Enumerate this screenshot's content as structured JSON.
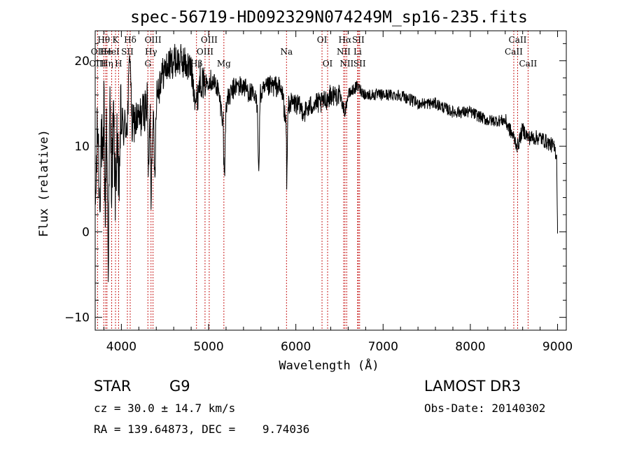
{
  "chart_data": {
    "type": "line",
    "title": "spec-56719-HD092329N074249M_sp16-235.fits",
    "xlabel": "Wavelength (Å)",
    "ylabel": "Flux (relative)",
    "xlim": [
      3700,
      9100
    ],
    "ylim": [
      -11.5,
      23.5
    ],
    "xticks": [
      4000,
      5000,
      6000,
      7000,
      8000,
      9000
    ],
    "yticks": [
      -10,
      0,
      10,
      20
    ],
    "series": [
      {
        "name": "spectrum",
        "anchors": [
          [
            3700,
            2
          ],
          [
            3730,
            13
          ],
          [
            3750,
            3
          ],
          [
            3770,
            12
          ],
          [
            3790,
            5
          ],
          [
            3800,
            16
          ],
          [
            3815,
            1
          ],
          [
            3830,
            14
          ],
          [
            3850,
            -3
          ],
          [
            3870,
            15
          ],
          [
            3890,
            6
          ],
          [
            3910,
            13
          ],
          [
            3933,
            4
          ],
          [
            3950,
            12
          ],
          [
            3968,
            3
          ],
          [
            3990,
            13
          ],
          [
            4030,
            12
          ],
          [
            4070,
            13
          ],
          [
            4101,
            22
          ],
          [
            4120,
            12
          ],
          [
            4150,
            13
          ],
          [
            4200,
            13
          ],
          [
            4250,
            14
          ],
          [
            4300,
            15
          ],
          [
            4310,
            6
          ],
          [
            4330,
            14
          ],
          [
            4340,
            4
          ],
          [
            4360,
            15
          ],
          [
            4383,
            6
          ],
          [
            4400,
            16
          ],
          [
            4450,
            18
          ],
          [
            4500,
            19
          ],
          [
            4600,
            20
          ],
          [
            4700,
            20
          ],
          [
            4800,
            19
          ],
          [
            4861,
            15
          ],
          [
            4900,
            18
          ],
          [
            4960,
            17
          ],
          [
            5000,
            18
          ],
          [
            5100,
            17
          ],
          [
            5167,
            13
          ],
          [
            5173,
            8
          ],
          [
            5184,
            7
          ],
          [
            5200,
            15
          ],
          [
            5300,
            17
          ],
          [
            5400,
            17
          ],
          [
            5500,
            16
          ],
          [
            5560,
            15
          ],
          [
            5575,
            6
          ],
          [
            5590,
            16
          ],
          [
            5700,
            17
          ],
          [
            5800,
            17
          ],
          [
            5850,
            16
          ],
          [
            5890,
            12
          ],
          [
            5896,
            5
          ],
          [
            5910,
            15
          ],
          [
            6000,
            15
          ],
          [
            6100,
            14
          ],
          [
            6200,
            15
          ],
          [
            6300,
            15
          ],
          [
            6400,
            16
          ],
          [
            6500,
            16
          ],
          [
            6563,
            14
          ],
          [
            6600,
            16
          ],
          [
            6700,
            17
          ],
          [
            6800,
            16
          ],
          [
            7000,
            16
          ],
          [
            7200,
            16
          ],
          [
            7400,
            15
          ],
          [
            7600,
            15
          ],
          [
            7800,
            14
          ],
          [
            8000,
            14
          ],
          [
            8200,
            13
          ],
          [
            8400,
            13
          ],
          [
            8498,
            11
          ],
          [
            8542,
            10
          ],
          [
            8600,
            12
          ],
          [
            8662,
            11
          ],
          [
            8800,
            11
          ],
          [
            8950,
            10
          ],
          [
            8990,
            9
          ],
          [
            9000,
            0
          ]
        ]
      }
    ],
    "spectral_lines": [
      {
        "label": "Hθ",
        "wl": 3798,
        "row": 0
      },
      {
        "label": "OII",
        "wl": 3727,
        "row": 1
      },
      {
        "label": "OIII",
        "wl": 3727,
        "row": 2
      },
      {
        "label": "He",
        "wl": 3820,
        "row": 1
      },
      {
        "label": "Hη",
        "wl": 3835,
        "row": 2
      },
      {
        "label": "K",
        "wl": 3933,
        "row": 0
      },
      {
        "label": "HeI",
        "wl": 3889,
        "row": 1
      },
      {
        "label": "H",
        "wl": 3968,
        "row": 2
      },
      {
        "label": "Hδ",
        "wl": 4101,
        "row": 0
      },
      {
        "label": "SII",
        "wl": 4069,
        "row": 1
      },
      {
        "label": "OIII",
        "wl": 4363,
        "row": 0
      },
      {
        "label": "Hγ",
        "wl": 4340,
        "row": 1
      },
      {
        "label": "G",
        "wl": 4304,
        "row": 2
      },
      {
        "label": "Hβ",
        "wl": 4861,
        "row": 2
      },
      {
        "label": "OIII",
        "wl": 5007,
        "row": 0
      },
      {
        "label": "OIII",
        "wl": 4959,
        "row": 1
      },
      {
        "label": "Mg",
        "wl": 5175,
        "row": 2
      },
      {
        "label": "Na",
        "wl": 5893,
        "row": 1
      },
      {
        "label": "OI",
        "wl": 6300,
        "row": 0
      },
      {
        "label": "OI",
        "wl": 6364,
        "row": 2
      },
      {
        "label": "Hα",
        "wl": 6563,
        "row": 0
      },
      {
        "label": "NII",
        "wl": 6548,
        "row": 1
      },
      {
        "label": "NII",
        "wl": 6583,
        "row": 2
      },
      {
        "label": "SII",
        "wl": 6716,
        "row": 0
      },
      {
        "label": "Li",
        "wl": 6708,
        "row": 1
      },
      {
        "label": "SII",
        "wl": 6731,
        "row": 2
      },
      {
        "label": "CaII",
        "wl": 8542,
        "row": 0
      },
      {
        "label": "CaII",
        "wl": 8498,
        "row": 1
      },
      {
        "label": "CaII",
        "wl": 8662,
        "row": 2
      }
    ]
  },
  "info": {
    "object_class": "STAR",
    "subclass": "G9",
    "survey": "LAMOST DR3",
    "cz_line": "cz = 30.0 ± 14.7 km/s",
    "obs_date_line": "Obs-Date: 20140302",
    "coords_line": "RA = 139.64873, DEC =    9.74036"
  }
}
